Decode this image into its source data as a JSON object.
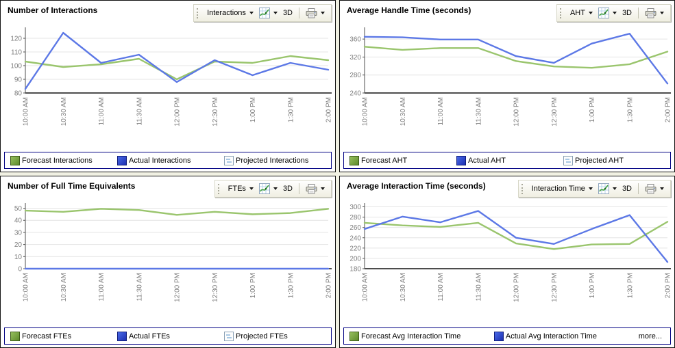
{
  "colors": {
    "forecast_line": "#9ac56d",
    "actual_line": "#5c78e6",
    "grid_line": "#e4e4e4",
    "axis": "#4d4d4d",
    "tick_text": "#7d7d7d",
    "legend_border": "#000082",
    "panel_gutter": "#f1f1e3"
  },
  "icons": {
    "toolbar": [
      "toolbar-grip",
      "chevron-down-icon",
      "line-chart-icon",
      "printer-icon"
    ]
  },
  "panels": [
    {
      "title": "Number of Interactions",
      "toolbar": {
        "metric_label": "Interactions",
        "mode_label": "3D"
      },
      "legend": [
        {
          "label": "Forecast Interactions",
          "swatch": "green"
        },
        {
          "label": "Actual Interactions",
          "swatch": "blue"
        },
        {
          "label": "Projected Interactions",
          "swatch": "projected"
        }
      ]
    },
    {
      "title": "Average Handle Time (seconds)",
      "toolbar": {
        "metric_label": "AHT",
        "mode_label": "3D"
      },
      "legend": [
        {
          "label": "Forecast AHT",
          "swatch": "green"
        },
        {
          "label": "Actual AHT",
          "swatch": "blue"
        },
        {
          "label": "Projected AHT",
          "swatch": "projected"
        }
      ]
    },
    {
      "title": "Number of Full Time Equivalents",
      "toolbar": {
        "metric_label": "FTEs",
        "mode_label": "3D"
      },
      "legend": [
        {
          "label": "Forecast FTEs",
          "swatch": "green"
        },
        {
          "label": "Actual FTEs",
          "swatch": "blue"
        },
        {
          "label": "Projected FTEs",
          "swatch": "projected"
        }
      ]
    },
    {
      "title": "Average Interaction Time (seconds)",
      "toolbar": {
        "metric_label": "Interaction Time",
        "mode_label": "3D"
      },
      "legend": [
        {
          "label": "Forecast Avg Interaction Time",
          "swatch": "green"
        },
        {
          "label": "Actual Avg Interaction Time",
          "swatch": "blue"
        }
      ],
      "more_label": "more..."
    }
  ],
  "chart_data": [
    {
      "type": "line",
      "title": "Number of Interactions",
      "x": [
        "10:00 AM",
        "10:30 AM",
        "11:00 AM",
        "11:30 AM",
        "12:00 PM",
        "12:30 PM",
        "1:00 PM",
        "1:30 PM",
        "2:00 PM"
      ],
      "ylim": [
        80,
        126
      ],
      "yticks": [
        80,
        90,
        100,
        110,
        120
      ],
      "grid": true,
      "legend_position": "bottom",
      "series": [
        {
          "name": "Forecast Interactions",
          "color": "#9ac56d",
          "values": [
            103,
            99,
            101,
            105,
            90,
            103,
            102,
            107,
            104
          ]
        },
        {
          "name": "Actual Interactions",
          "color": "#5c78e6",
          "values": [
            83,
            124,
            102,
            108,
            88,
            104,
            93,
            102,
            97
          ]
        }
      ]
    },
    {
      "type": "line",
      "title": "Average Handle Time (seconds)",
      "x": [
        "10:00 AM",
        "10:30 AM",
        "11:00 AM",
        "11:30 AM",
        "12:00 PM",
        "12:30 PM",
        "1:00 PM",
        "1:30 PM",
        "2:00 PM"
      ],
      "ylim": [
        240,
        380
      ],
      "yticks": [
        240,
        280,
        320,
        360
      ],
      "grid": true,
      "legend_position": "bottom",
      "series": [
        {
          "name": "Forecast AHT",
          "color": "#9ac56d",
          "values": [
            343,
            336,
            340,
            340,
            311,
            299,
            296,
            304,
            332
          ]
        },
        {
          "name": "Actual AHT",
          "color": "#5c78e6",
          "values": [
            365,
            364,
            359,
            359,
            322,
            307,
            350,
            372,
            261
          ]
        }
      ]
    },
    {
      "type": "line",
      "title": "Number of Full Time Equivalents",
      "x": [
        "10:00 AM",
        "10:30 AM",
        "11:00 AM",
        "11:30 AM",
        "12:00 PM",
        "12:30 PM",
        "1:00 PM",
        "1:30 PM",
        "2:00 PM"
      ],
      "ylim": [
        0,
        52
      ],
      "yticks": [
        0,
        10,
        20,
        30,
        40,
        50
      ],
      "grid": true,
      "legend_position": "bottom",
      "series": [
        {
          "name": "Forecast FTEs",
          "color": "#9ac56d",
          "values": [
            48,
            47,
            49.5,
            48.5,
            44.5,
            47,
            45,
            46,
            49.5
          ]
        },
        {
          "name": "Actual FTEs",
          "color": "#5c78e6",
          "values": [
            0,
            0,
            0,
            0,
            0,
            0,
            0,
            0,
            0
          ]
        }
      ]
    },
    {
      "type": "line",
      "title": "Average Interaction Time (seconds)",
      "x": [
        "10:00 AM",
        "10:30 AM",
        "11:00 AM",
        "11:30 AM",
        "12:00 PM",
        "12:30 PM",
        "1:00 PM",
        "1:30 PM",
        "2:00 PM"
      ],
      "ylim": [
        180,
        302
      ],
      "yticks": [
        180,
        200,
        220,
        240,
        260,
        280,
        300
      ],
      "grid": true,
      "legend_position": "bottom",
      "series": [
        {
          "name": "Forecast Avg Interaction Time",
          "color": "#9ac56d",
          "values": [
            269,
            264,
            261,
            269,
            229,
            218,
            227,
            228,
            271
          ]
        },
        {
          "name": "Actual Avg Interaction Time",
          "color": "#5c78e6",
          "values": [
            257,
            281,
            270,
            292,
            240,
            228,
            257,
            284,
            193
          ]
        }
      ]
    }
  ]
}
